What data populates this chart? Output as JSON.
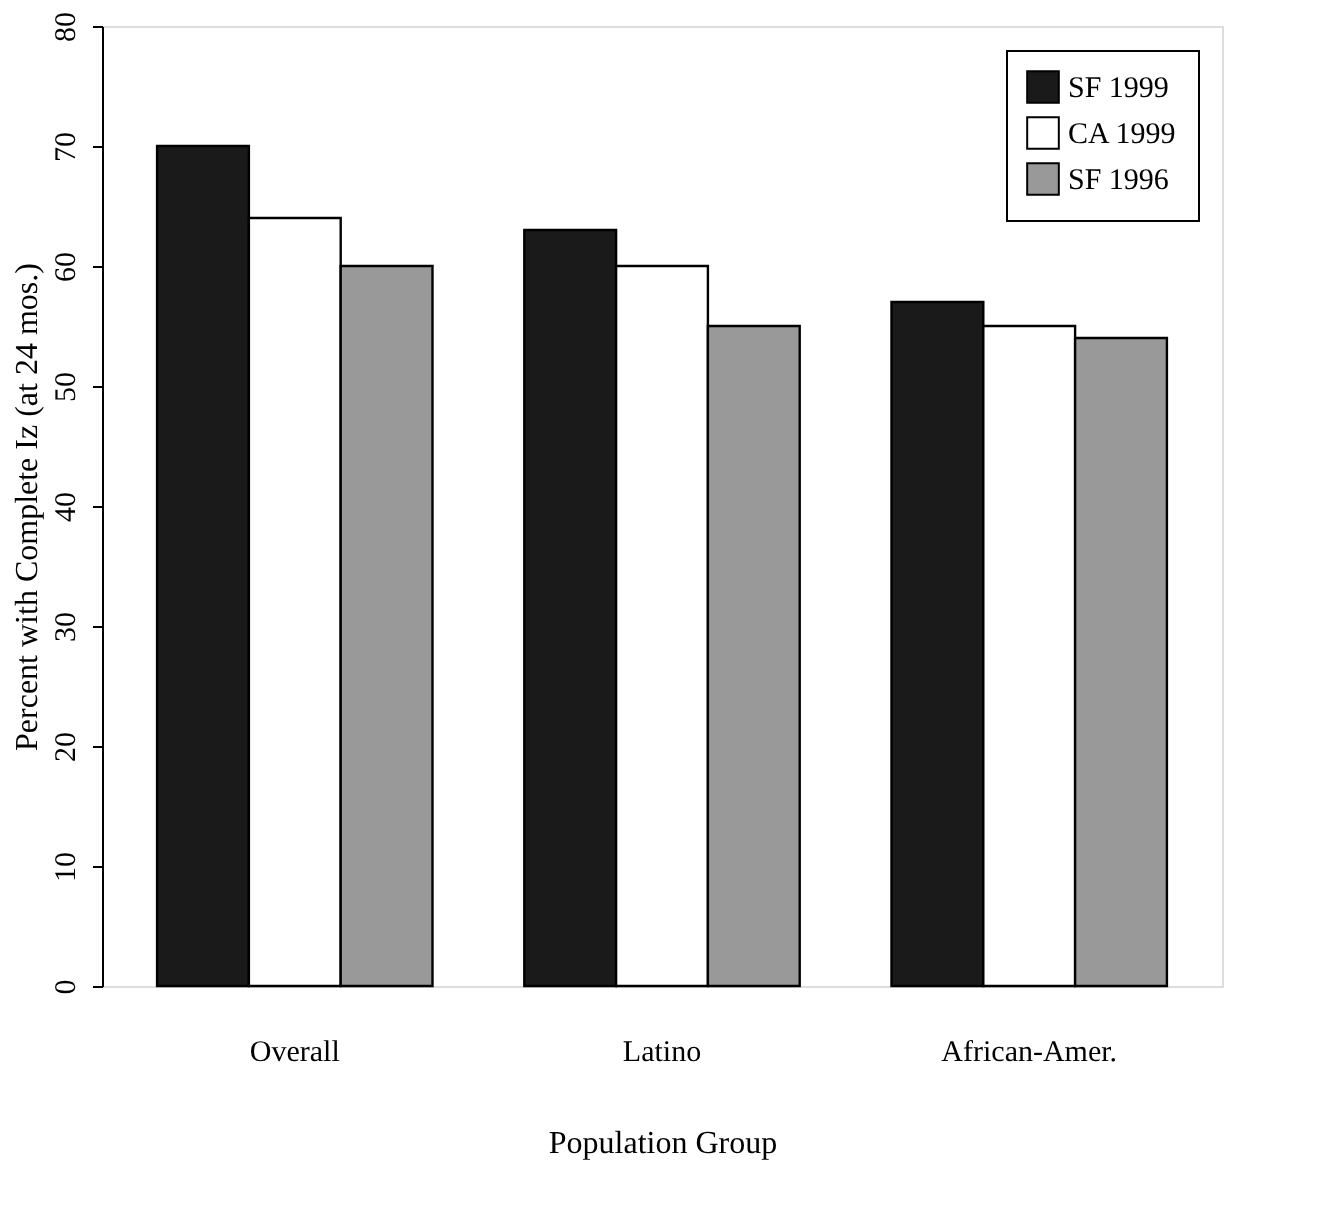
{
  "chart_data": {
    "type": "bar",
    "xlabel": "Population Group",
    "ylabel": "Percent with Complete Iz (at 24 mos.)",
    "categories": [
      "Overall",
      "Latino",
      "African-Amer."
    ],
    "series": [
      {
        "name": "SF 1999",
        "color": "#1a1a1a",
        "values": [
          70,
          63,
          57
        ]
      },
      {
        "name": "CA 1999",
        "color": "#ffffff",
        "values": [
          64,
          60,
          55
        ]
      },
      {
        "name": "SF 1996",
        "color": "#999999",
        "values": [
          60,
          55,
          54
        ]
      }
    ],
    "ylim": [
      0,
      80
    ],
    "yticks": [
      0,
      10,
      20,
      30,
      40,
      50,
      60,
      70,
      80
    ],
    "grid": false,
    "legend": "top right"
  }
}
